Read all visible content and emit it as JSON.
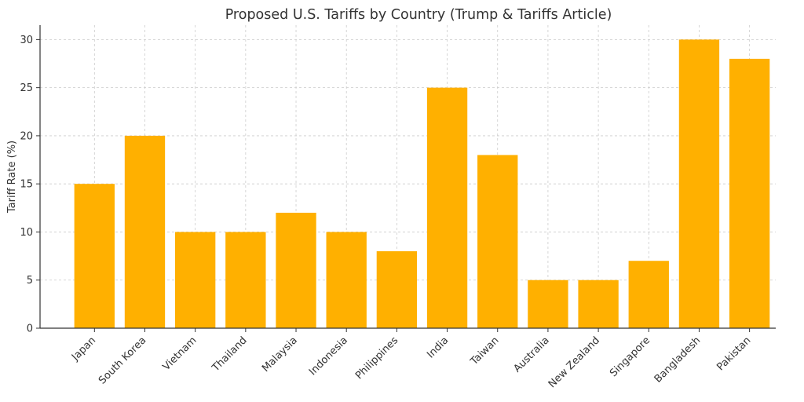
{
  "chart_data": {
    "type": "bar",
    "title": "Proposed U.S. Tariffs by Country (Trump & Tariffs Article)",
    "xlabel": "",
    "ylabel": "Tariff Rate (%)",
    "categories": [
      "Japan",
      "South Korea",
      "Vietnam",
      "Thailand",
      "Malaysia",
      "Indonesia",
      "Philippines",
      "India",
      "Taiwan",
      "Australia",
      "New Zealand",
      "Singapore",
      "Bangladesh",
      "Pakistan"
    ],
    "values": [
      15,
      20,
      10,
      10,
      12,
      10,
      8,
      25,
      18,
      5,
      5,
      7,
      30,
      28
    ],
    "ylim": [
      0,
      31.5
    ],
    "yticks": [
      0,
      5,
      10,
      15,
      20,
      25,
      30
    ],
    "grid": true,
    "legend": "none",
    "colors": {
      "bar": "#FFB000",
      "grid": "#cccccc",
      "axis": "#333333",
      "text": "#333333"
    }
  }
}
